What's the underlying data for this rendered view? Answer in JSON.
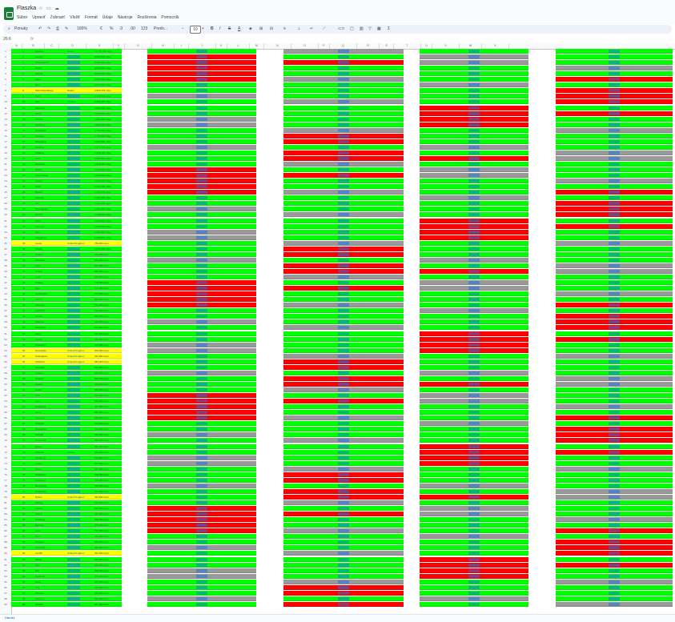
{
  "app": {
    "title": "Flaszka",
    "title_icons": [
      "star-icon",
      "folder-icon",
      "cloud-icon"
    ],
    "menu": [
      "Súbor",
      "Upraviť",
      "Zobraziť",
      "Vložiť",
      "Formát",
      "Údaje",
      "Nástroje",
      "Rozšírenia",
      "Pomocník"
    ]
  },
  "toolbar": {
    "search_label": "Ponuky",
    "zoom": "100%",
    "currency": "€",
    "percent": "%",
    "format_label": "Predv...",
    "font_size": "10",
    "bold": "B",
    "italic": "I",
    "strike": "S",
    "text_color": "A"
  },
  "formula_bar": {
    "name_box": "26:6",
    "fx": "fx"
  },
  "columns": [
    "A",
    "B",
    "C",
    "D",
    "E",
    "F",
    "G",
    "H",
    "I",
    "J",
    "K",
    "L",
    "M",
    "N",
    "O",
    "P",
    "Q",
    "R",
    "S",
    "T",
    "U",
    "V",
    "W",
    "X"
  ],
  "colors": {
    "green": "#00ff00",
    "red": "#ff0000",
    "gray": "#999999",
    "yellow": "#ffff00",
    "link": "#1a73e8"
  },
  "sections": [
    {
      "name": "section-1",
      "rows": [
        {
          "r": 1,
          "c": "g",
          "rank": "1",
          "name": "Moskva",
          "link": "Rusko",
          "value": "12,700,000 obyv."
        },
        {
          "r": 2,
          "c": "g",
          "rank": "2",
          "name": "Londýn",
          "value": "8,900,000 obyv."
        },
        {
          "r": 3,
          "c": "g",
          "rank": "3",
          "name": "Sankt Peterb.",
          "value": "5,380,000 obyv."
        },
        {
          "r": 4,
          "c": "g",
          "rank": "4",
          "name": "Berlín",
          "value": "3,645,000 obyv."
        },
        {
          "r": 5,
          "c": "g",
          "rank": "5",
          "name": "Madrid",
          "value": "3,266,000 obyv."
        },
        {
          "r": 6,
          "c": "g",
          "rank": "6",
          "name": "Kyjev",
          "value": "2,962,000 obyv."
        },
        {
          "r": 7,
          "c": "g",
          "rank": "7",
          "name": "Rím",
          "value": "2,873,000 obyv."
        },
        {
          "r": 8,
          "c": "y",
          "rank": "8",
          "name": "Saint Petersburg",
          "link": "Rusko",
          "value": "2,990,178 obyv."
        },
        {
          "r": 9,
          "c": "g",
          "rank": "9",
          "name": "Paríž",
          "value": "2,148,000 obyv."
        },
        {
          "r": 10,
          "c": "g",
          "rank": "10",
          "name": "Kiev",
          "link": "Ukrajina",
          "value": "2,665,397 obyv."
        },
        {
          "r": 11,
          "c": "g",
          "rank": "11",
          "name": "Bukurešť",
          "value": "1,883,000 obyv."
        },
        {
          "r": 12,
          "c": "g",
          "rank": "12",
          "name": "Minsk",
          "value": "1,995,000 obyv."
        },
        {
          "r": 13,
          "c": "g",
          "rank": "13",
          "name": "Viedeň",
          "value": "1,897,000 obyv."
        },
        {
          "r": 14,
          "c": "g",
          "rank": "14",
          "name": "Hamburg",
          "value": "1,841,000 obyv."
        },
        {
          "r": 15,
          "c": "g",
          "rank": "15",
          "name": "Budapešť",
          "value": "1,752,000 obyv."
        },
        {
          "r": 16,
          "c": "g",
          "rank": "16",
          "name": "Varšava",
          "value": "1,790,000 obyv."
        },
        {
          "r": 17,
          "c": "g",
          "rank": "17",
          "name": "Barcelona",
          "value": "1,620,000 obyv."
        },
        {
          "r": 18,
          "c": "g",
          "rank": "18",
          "name": "Mníchov",
          "value": "1,471,000 obyv."
        },
        {
          "r": 19,
          "c": "g",
          "rank": "19",
          "name": "Charkov",
          "value": "1,419,000 obyv."
        },
        {
          "r": 20,
          "c": "g",
          "rank": "20",
          "name": "Milán",
          "value": "1,352,000 obyv."
        },
        {
          "r": 21,
          "c": "g",
          "rank": "21",
          "name": "Belehrad",
          "value": "1,378,000 obyv."
        },
        {
          "r": 22,
          "c": "g",
          "rank": "22",
          "name": "Praha",
          "value": "1,309,000 obyv."
        },
        {
          "r": 23,
          "c": "g",
          "rank": "23",
          "name": "Nižný Novg.",
          "value": "1,250,000 obyv."
        },
        {
          "r": 24,
          "c": "g",
          "rank": "24",
          "name": "Kazaň",
          "value": "1,243,000 obyv."
        },
        {
          "r": 25,
          "c": "g",
          "rank": "25",
          "name": "Sofia",
          "value": "1,241,000 obyv."
        },
        {
          "r": 26,
          "c": "g",
          "rank": "26",
          "name": "Brusel",
          "value": "1,209,000 obyv."
        },
        {
          "r": 27,
          "c": "g",
          "rank": "27",
          "name": "Samara",
          "value": "1,164,000 obyv."
        },
        {
          "r": 28,
          "c": "g",
          "rank": "28",
          "name": "Ufa",
          "value": "1,115,000 obyv."
        },
        {
          "r": 29,
          "c": "g",
          "rank": "29",
          "name": "Birmingham",
          "value": "1,141,000 obyv."
        },
        {
          "r": 30,
          "c": "g",
          "rank": "30",
          "name": "Rostov",
          "value": "1,130,000 obyv."
        },
        {
          "r": 31,
          "c": "g",
          "rank": "31",
          "name": "Kolín",
          "value": "1,085,000 obyv."
        },
        {
          "r": 32,
          "c": "g",
          "rank": "32",
          "name": "Voronež",
          "value": "1,050,000 obyv."
        },
        {
          "r": 33,
          "c": "g",
          "rank": "33",
          "name": "Perm",
          "value": "1,051,000 obyv."
        },
        {
          "r": 34,
          "c": "g",
          "rank": "34",
          "name": "Volgograd",
          "value": "1,008,000 obyv."
        },
        {
          "r": 35,
          "c": "y",
          "rank": "35",
          "name": "Leeds",
          "link": "United Kingdom",
          "value": "789,000 obyv."
        },
        {
          "r": 36,
          "c": "g",
          "rank": "36",
          "name": "Odesa",
          "value": "1,010,000 obyv."
        },
        {
          "r": 37,
          "c": "g",
          "rank": "37",
          "name": "Neapol",
          "value": "959,000 obyv."
        },
        {
          "r": 38,
          "c": "g",
          "rank": "38",
          "name": "Marseille",
          "value": "870,000 obyv."
        },
        {
          "r": 39,
          "c": "g",
          "rank": "39",
          "name": "Turín",
          "value": "875,000 obyv."
        },
        {
          "r": 40,
          "c": "g",
          "rank": "40",
          "name": "Dnipro",
          "value": "980,000 obyv."
        },
        {
          "r": 41,
          "c": "g",
          "rank": "41",
          "name": "Lodž",
          "value": "679,000 obyv."
        },
        {
          "r": 42,
          "c": "g",
          "rank": "42",
          "name": "Krakov",
          "value": "779,000 obyv."
        },
        {
          "r": 43,
          "c": "g",
          "rank": "43",
          "name": "Riga",
          "value": "614,000 obyv."
        },
        {
          "r": 44,
          "c": "g",
          "rank": "44",
          "name": "Amsterdam",
          "value": "872,000 obyv."
        },
        {
          "r": 45,
          "c": "g",
          "rank": "45",
          "name": "Záhreb",
          "value": "806,000 obyv."
        },
        {
          "r": 46,
          "c": "g",
          "rank": "46",
          "name": "Valencia",
          "value": "791,000 obyv."
        },
        {
          "r": 47,
          "c": "g",
          "rank": "47",
          "name": "Frankfurt",
          "value": "753,000 obyv."
        },
        {
          "r": 48,
          "c": "g",
          "rank": "48",
          "name": "Sevilla",
          "value": "688,000 obyv."
        },
        {
          "r": 49,
          "c": "g",
          "rank": "49",
          "name": "Palermo",
          "value": "663,000 obyv."
        },
        {
          "r": 50,
          "c": "g",
          "rank": "50",
          "name": "Zaragoza",
          "value": "674,000 obyv."
        },
        {
          "r": 51,
          "c": "g",
          "rank": "51",
          "name": "Atény",
          "value": "664,000 obyv."
        },
        {
          "r": 52,
          "c": "g",
          "rank": "52",
          "name": "Vilnius",
          "value": "580,000 obyv."
        },
        {
          "r": 53,
          "c": "g",
          "rank": "53",
          "name": "Štokholm",
          "value": "975,000 obyv."
        },
        {
          "r": 54,
          "c": "y",
          "rank": "54",
          "name": "Newcastle",
          "link": "United Kingdom",
          "value": "300,000 obyv."
        },
        {
          "r": 55,
          "c": "y",
          "rank": "55",
          "name": "Nottingham",
          "link": "United Kingdom",
          "value": "323,000 obyv."
        },
        {
          "r": 56,
          "c": "y",
          "rank": "56",
          "name": "Sheffield",
          "link": "United Kingdom",
          "value": "584,000 obyv."
        },
        {
          "r": 57,
          "c": "g",
          "rank": "57",
          "name": "Wroclaw",
          "value": "641,000 obyv."
        },
        {
          "r": 58,
          "c": "g",
          "rank": "58",
          "name": "Lisabon",
          "value": "545,000 obyv."
        },
        {
          "r": 59,
          "c": "g",
          "rank": "59",
          "name": "Helsinki",
          "value": "656,000 obyv."
        },
        {
          "r": 60,
          "c": "g",
          "rank": "60",
          "name": "Kodaň",
          "value": "644,000 obyv."
        },
        {
          "r": 61,
          "c": "g",
          "rank": "61",
          "name": "Dublin",
          "value": "554,000 obyv."
        },
        {
          "r": 62,
          "c": "g",
          "rank": "62",
          "name": "Oslo",
          "value": "697,000 obyv."
        },
        {
          "r": 63,
          "c": "g",
          "rank": "63",
          "name": "Lyon",
          "value": "516,000 obyv."
        },
        {
          "r": 64,
          "c": "g",
          "rank": "64",
          "name": "Bratislava",
          "value": "475,000 obyv."
        },
        {
          "r": 65,
          "c": "g",
          "rank": "65",
          "name": "Janov",
          "value": "580,000 obyv."
        },
        {
          "r": 66,
          "c": "g",
          "rank": "66",
          "name": "Antverpy",
          "value": "529,000 obyv."
        },
        {
          "r": 67,
          "c": "g",
          "rank": "67",
          "name": "Stuttgart",
          "value": "634,000 obyv."
        },
        {
          "r": 68,
          "c": "g",
          "rank": "68",
          "name": "Düsseldorf",
          "value": "619,000 obyv."
        },
        {
          "r": 69,
          "c": "g",
          "rank": "69",
          "name": "Poznaň",
          "value": "534,000 obyv."
        },
        {
          "r": 70,
          "c": "g",
          "rank": "70",
          "name": "Dortmund",
          "value": "588,000 obyv."
        },
        {
          "r": 71,
          "c": "g",
          "rank": "71",
          "name": "Essen",
          "value": "582,000 obyv."
        },
        {
          "r": 72,
          "c": "g",
          "rank": "72",
          "name": "Gdansk",
          "link": "Poľsko",
          "value": "470,000 obyv."
        },
        {
          "r": 73,
          "c": "g",
          "rank": "73",
          "name": "Göteborg",
          "value": "579,000 obyv."
        },
        {
          "r": 74,
          "c": "g",
          "rank": "74",
          "name": "Lipsko",
          "value": "597,000 obyv."
        },
        {
          "r": 75,
          "c": "g",
          "rank": "75",
          "name": "Brémy",
          "value": "567,000 obyv."
        },
        {
          "r": 76,
          "c": "g",
          "rank": "76",
          "name": "Drážďany",
          "value": "556,000 obyv."
        },
        {
          "r": 77,
          "c": "g",
          "rank": "77",
          "name": "Hannover",
          "value": "535,000 obyv."
        },
        {
          "r": 78,
          "c": "g",
          "rank": "78",
          "name": "Norimberg",
          "value": "518,000 obyv."
        },
        {
          "r": 79,
          "c": "g",
          "rank": "79",
          "name": "Rotterdam",
          "value": "651,000 obyv."
        },
        {
          "r": 80,
          "c": "y",
          "rank": "80",
          "name": "Bristol",
          "link": "United Kingdom",
          "value": "463,000 obyv."
        },
        {
          "r": 81,
          "c": "g",
          "rank": "81",
          "name": "Málaga",
          "value": "578,000 obyv."
        },
        {
          "r": 82,
          "c": "g",
          "rank": "82",
          "name": "Kišiňov",
          "value": "532,000 obyv."
        },
        {
          "r": 83,
          "c": "g",
          "rank": "83",
          "name": "Tallinn",
          "value": "437,000 obyv."
        },
        {
          "r": 84,
          "c": "g",
          "rank": "84",
          "name": "Duisburg",
          "value": "498,000 obyv."
        },
        {
          "r": 85,
          "c": "g",
          "rank": "85",
          "name": "Bochum",
          "value": "365,000 obyv."
        },
        {
          "r": 86,
          "c": "g",
          "rank": "86",
          "name": "Lvov",
          "value": "721,000 obyv."
        },
        {
          "r": 87,
          "c": "g",
          "rank": "87",
          "name": "Brno",
          "value": "381,000 obyv."
        },
        {
          "r": 88,
          "c": "g",
          "rank": "88",
          "name": "Bologna",
          "value": "389,000 obyv."
        },
        {
          "r": 89,
          "c": "g",
          "rank": "89",
          "name": "Florencia",
          "value": "381,000 obyv."
        },
        {
          "r": 90,
          "c": "y",
          "rank": "90",
          "name": "Cardiff",
          "link": "United Kingdom",
          "value": "362,000 obyv."
        },
        {
          "r": 91,
          "c": "g",
          "rank": "91",
          "name": "Bilbao",
          "value": "346,000 obyv."
        },
        {
          "r": 92,
          "c": "g",
          "rank": "92",
          "name": "Nice",
          "value": "342,000 obyv."
        },
        {
          "r": 93,
          "c": "g",
          "rank": "93",
          "name": "Bari",
          "value": "320,000 obyv."
        },
        {
          "r": 94,
          "c": "g",
          "rank": "94",
          "name": "Toulouse",
          "value": "479,000 obyv."
        },
        {
          "r": 95,
          "c": "g",
          "rank": "95",
          "name": "Bonn",
          "value": "327,000 obyv."
        },
        {
          "r": 96,
          "c": "g",
          "rank": "96",
          "name": "Cluj",
          "link": "",
          "value": "324,000 obyv."
        },
        {
          "r": 97,
          "c": "g",
          "rank": "97",
          "name": "Münster",
          "value": "315,000 obyv."
        },
        {
          "r": 98,
          "c": "g",
          "rank": "98",
          "name": "Katovice",
          "value": "294,000 obyv."
        },
        {
          "r": 99,
          "c": "g",
          "rank": "99",
          "name": "Utrecht",
          "value": "357,000 obyv."
        }
      ]
    }
  ],
  "sheet_tab": "Hárok1"
}
